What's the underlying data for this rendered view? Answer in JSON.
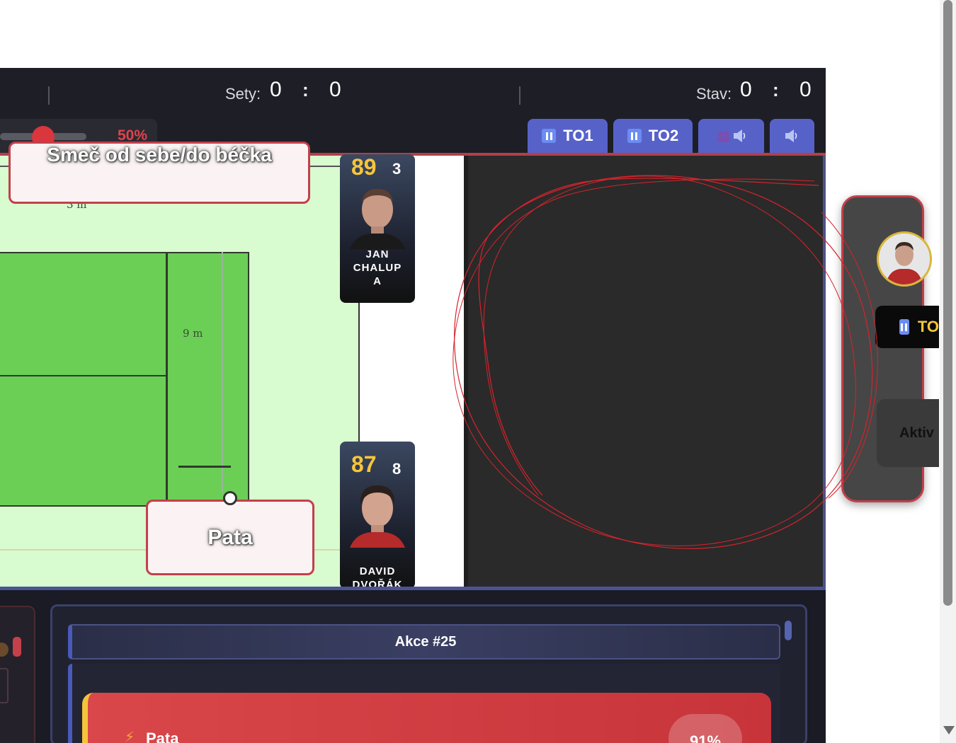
{
  "header": {
    "sets_label": "Sety:",
    "sets_home": "0",
    "sets_away": "0",
    "score_label": "Stav:",
    "score_home": "0",
    "score_away": "0",
    "colon": ":",
    "volume_percent": "50%",
    "volume_level": 0.5,
    "buttons": [
      {
        "label": "TO1",
        "icon": "pause-icon"
      },
      {
        "label": "TO2",
        "icon": "pause-icon"
      },
      {
        "label": "",
        "icon": "team-speaker-icon"
      },
      {
        "label": "",
        "icon": "speaker-icon"
      }
    ]
  },
  "court": {
    "action_top": "Smeč od sebe/do béčka",
    "action_bottom": "Pata",
    "dim_top": "3 m",
    "dim_side": "9 m"
  },
  "players": [
    {
      "rating": "89",
      "jersey": "3",
      "name_lines": [
        "JAN",
        "CHALUP",
        "A"
      ]
    },
    {
      "rating": "87",
      "jersey": "8",
      "name_lines": [
        "DAVID",
        "DVOŘÁK"
      ]
    }
  ],
  "side_widget": {
    "to_label": "TO",
    "aktiv_label": "Aktiv"
  },
  "bottom": {
    "akce_title": "Akce #25",
    "suggestion_label": "Pata",
    "suggestion_pct": "91%"
  },
  "colors": {
    "accent_red": "#c2404b",
    "accent_blue": "#5762c9",
    "rating_gold": "#f7c53a"
  }
}
